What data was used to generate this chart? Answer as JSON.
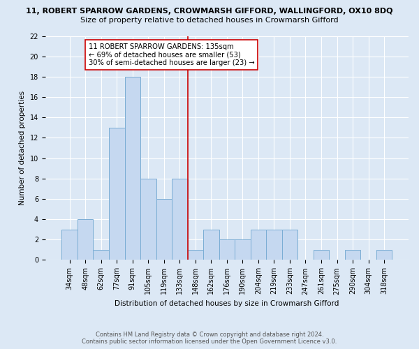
{
  "title": "11, ROBERT SPARROW GARDENS, CROWMARSH GIFFORD, WALLINGFORD, OX10 8DQ",
  "subtitle": "Size of property relative to detached houses in Crowmarsh Gifford",
  "xlabel": "Distribution of detached houses by size in Crowmarsh Gifford",
  "ylabel": "Number of detached properties",
  "categories": [
    "34sqm",
    "48sqm",
    "62sqm",
    "77sqm",
    "91sqm",
    "105sqm",
    "119sqm",
    "133sqm",
    "148sqm",
    "162sqm",
    "176sqm",
    "190sqm",
    "204sqm",
    "219sqm",
    "233sqm",
    "247sqm",
    "261sqm",
    "275sqm",
    "290sqm",
    "304sqm",
    "318sqm"
  ],
  "values": [
    3,
    4,
    1,
    13,
    18,
    8,
    6,
    8,
    1,
    3,
    2,
    2,
    3,
    3,
    3,
    0,
    1,
    0,
    1,
    0,
    1
  ],
  "bar_color": "#c5d8f0",
  "bar_edge_color": "#7aadd4",
  "red_line_x": 7.5,
  "annotation_line1": "11 ROBERT SPARROW GARDENS: 135sqm",
  "annotation_line2": "← 69% of detached houses are smaller (53)",
  "annotation_line3": "30% of semi-detached houses are larger (23) →",
  "ylim": [
    0,
    22
  ],
  "yticks": [
    0,
    2,
    4,
    6,
    8,
    10,
    12,
    14,
    16,
    18,
    20,
    22
  ],
  "footer_line1": "Contains HM Land Registry data © Crown copyright and database right 2024.",
  "footer_line2": "Contains public sector information licensed under the Open Government Licence v3.0.",
  "bg_color": "#dce8f5",
  "plot_bg_color": "#dce8f5",
  "grid_color": "#ffffff",
  "title_fontsize": 8,
  "subtitle_fontsize": 8,
  "axis_label_fontsize": 7.5,
  "tick_fontsize": 7,
  "annotation_fontsize": 7.2,
  "footer_fontsize": 6
}
